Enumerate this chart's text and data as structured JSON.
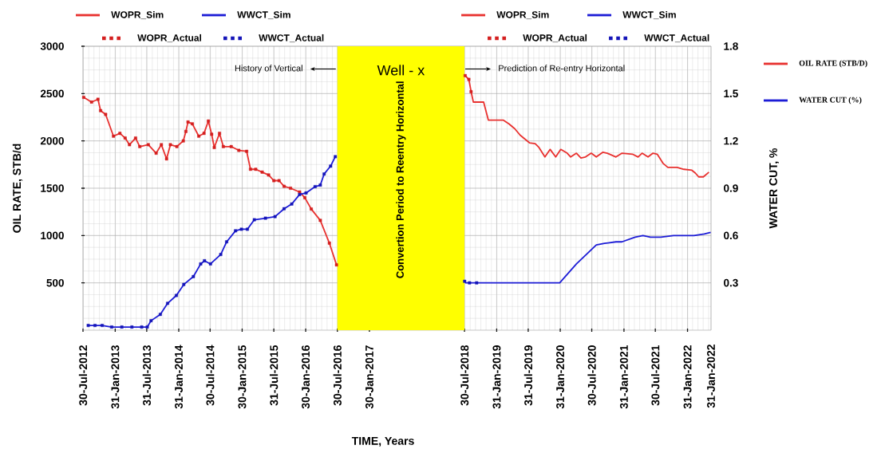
{
  "chart_data": {
    "type": "line",
    "title": "Well - x",
    "xlabel": "TIME, Years",
    "ylabel": "OIL RATE, STB/d",
    "y2label": "WATER CUT, %",
    "xlim": [
      "2012-07-30",
      "2022-06-15"
    ],
    "xticks": [
      {
        "value": "2012-07-30",
        "label": "30-Jul-2012"
      },
      {
        "value": "2013-01-31",
        "label": "31-Jan-2013"
      },
      {
        "value": "2013-07-31",
        "label": "31-Jul-2013"
      },
      {
        "value": "2014-01-31",
        "label": "31-Jan-2014"
      },
      {
        "value": "2014-07-30",
        "label": "30-Jul-2014"
      },
      {
        "value": "2015-01-30",
        "label": "30-Jan-2015"
      },
      {
        "value": "2015-07-31",
        "label": "31-Jul-2015"
      },
      {
        "value": "2016-01-30",
        "label": "30-Jan-2016"
      },
      {
        "value": "2016-07-30",
        "label": "30-Jul-2016"
      },
      {
        "value": "2017-01-30",
        "label": "30-Jan-2017"
      },
      {
        "value": "2018-07-30",
        "label": "30-Jul-2018"
      },
      {
        "value": "2019-01-31",
        "label": "31-Jan-2019"
      },
      {
        "value": "2019-07-31",
        "label": "31-Jul-2019"
      },
      {
        "value": "2020-01-31",
        "label": "31-Jan-2020"
      },
      {
        "value": "2020-07-30",
        "label": "30-Jul-2020"
      },
      {
        "value": "2021-01-31",
        "label": "31-Jan-2021"
      },
      {
        "value": "2021-07-30",
        "label": "30-Jul-2021"
      },
      {
        "value": "2022-01-31",
        "label": "31-Jan-2022"
      }
    ],
    "ylim": [
      0,
      3000
    ],
    "yticks": [
      500,
      1000,
      1500,
      2000,
      2500,
      3000
    ],
    "y2lim": [
      0,
      1.8
    ],
    "y2ticks": [
      0.3,
      0.6,
      0.9,
      1.2,
      1.5,
      1.8
    ],
    "grid": true,
    "legend": "top",
    "bands": [
      {
        "axis": "x",
        "from": "2016-07-30",
        "to": "2018-07-30",
        "label": "Convertion Period to Reentry Horizontal",
        "color": "#ffff00"
      }
    ],
    "annotations": [
      "History of Vertical",
      "Prediction of Re-entry Horizontal",
      "31-Jan-2022"
    ],
    "series": [
      {
        "name": "WOPR_Sim",
        "color": "#e8312f",
        "x": [
          "2012-08-03",
          "2012-09-17",
          "2012-10-24",
          "2012-11-08",
          "2012-12-07",
          "2013-01-21",
          "2013-02-27",
          "2013-03-29",
          "2013-04-23",
          "2013-05-28",
          "2013-06-21",
          "2013-08-09",
          "2013-09-23",
          "2013-10-23",
          "2013-11-22",
          "2013-12-14",
          "2014-01-20",
          "2014-02-26",
          "2014-03-13",
          "2014-03-25",
          "2014-04-19",
          "2014-05-26",
          "2014-06-25",
          "2014-07-20",
          "2014-08-08",
          "2014-08-23",
          "2014-09-22",
          "2014-10-14",
          "2014-11-28",
          "2015-01-11",
          "2015-02-25",
          "2015-03-19",
          "2015-04-18",
          "2015-05-25",
          "2015-07-01",
          "2015-07-31",
          "2015-08-30",
          "2015-09-28",
          "2015-11-04",
          "2015-12-26",
          "2016-01-25",
          "2016-03-02",
          "2016-04-23",
          "2016-06-14",
          "2016-07-25"
        ],
        "values": [
          2460,
          2410,
          2440,
          2320,
          2280,
          2050,
          2080,
          2030,
          1960,
          2030,
          1940,
          1960,
          1870,
          1960,
          1810,
          1960,
          1940,
          2000,
          2100,
          2200,
          2180,
          2050,
          2080,
          2210,
          2070,
          1930,
          2080,
          1940,
          1940,
          1900,
          1890,
          1700,
          1700,
          1670,
          1640,
          1580,
          1580,
          1520,
          1500,
          1460,
          1400,
          1280,
          1160,
          920,
          690
        ]
      },
      {
        "name": "WWCT_Sim",
        "color": "#1c1cd6",
        "axis": "y2",
        "x": [
          "2012-08-29",
          "2012-10-07",
          "2012-11-17",
          "2013-01-11",
          "2013-03-10",
          "2013-05-07",
          "2013-07-02",
          "2013-08-03",
          "2013-08-25",
          "2013-10-17",
          "2013-11-28",
          "2014-01-17",
          "2014-03-01",
          "2014-04-25",
          "2014-06-06",
          "2014-06-28",
          "2014-08-01",
          "2014-09-29",
          "2014-11-02",
          "2014-12-23",
          "2015-01-26",
          "2015-03-01",
          "2015-04-10",
          "2015-06-13",
          "2015-08-07",
          "2015-09-28",
          "2015-11-11",
          "2015-12-26",
          "2016-02-01",
          "2016-03-24",
          "2016-04-23",
          "2016-05-15",
          "2016-06-21",
          "2016-07-18"
        ],
        "values": [
          0.03,
          0.03,
          0.03,
          0.02,
          0.02,
          0.02,
          0.02,
          0.02,
          0.06,
          0.1,
          0.17,
          0.22,
          0.29,
          0.34,
          0.42,
          0.44,
          0.42,
          0.48,
          0.56,
          0.63,
          0.64,
          0.64,
          0.7,
          0.71,
          0.72,
          0.77,
          0.8,
          0.86,
          0.87,
          0.91,
          0.92,
          0.99,
          1.04,
          1.1
        ]
      },
      {
        "name": "WOPR_Actual",
        "type": "scatter",
        "marker": "square",
        "color": "#d41f1f",
        "x": [
          "2012-08-03",
          "2012-09-17",
          "2012-10-24",
          "2012-11-08",
          "2012-12-07",
          "2013-01-21",
          "2013-02-27",
          "2013-03-29",
          "2013-04-23",
          "2013-05-28",
          "2013-06-21",
          "2013-08-09",
          "2013-09-23",
          "2013-10-23",
          "2013-11-22",
          "2013-12-14",
          "2014-01-20",
          "2014-02-26",
          "2014-03-13",
          "2014-03-25",
          "2014-04-19",
          "2014-05-26",
          "2014-06-25",
          "2014-07-20",
          "2014-08-08",
          "2014-08-23",
          "2014-09-22",
          "2014-10-14",
          "2014-11-28",
          "2015-01-11",
          "2015-02-25",
          "2015-03-19",
          "2015-04-18",
          "2015-05-25",
          "2015-07-01",
          "2015-07-31",
          "2015-08-30",
          "2015-09-28",
          "2015-11-04",
          "2015-12-26",
          "2016-01-25",
          "2016-03-02",
          "2016-04-23",
          "2016-06-14",
          "2016-07-25",
          "2018-08-03",
          "2018-08-24",
          "2018-09-06"
        ],
        "values": [
          2460,
          2410,
          2440,
          2320,
          2280,
          2050,
          2080,
          2030,
          1960,
          2030,
          1940,
          1960,
          1870,
          1960,
          1810,
          1960,
          1940,
          2000,
          2100,
          2200,
          2180,
          2050,
          2080,
          2210,
          2070,
          1930,
          2080,
          1940,
          1940,
          1900,
          1890,
          1700,
          1700,
          1670,
          1640,
          1580,
          1580,
          1520,
          1500,
          1460,
          1400,
          1280,
          1160,
          920,
          690,
          2690,
          2650,
          2520
        ]
      },
      {
        "name": "WWCT_Actual",
        "type": "scatter",
        "marker": "square",
        "color": "#1414b8",
        "axis": "y2",
        "x": [
          "2012-08-29",
          "2012-10-07",
          "2012-11-17",
          "2013-01-11",
          "2013-03-10",
          "2013-05-07",
          "2013-07-02",
          "2013-08-03",
          "2013-08-25",
          "2013-10-17",
          "2013-11-28",
          "2014-01-17",
          "2014-03-01",
          "2014-04-25",
          "2014-06-06",
          "2014-06-28",
          "2014-08-01",
          "2014-09-29",
          "2014-11-02",
          "2014-12-23",
          "2015-01-26",
          "2015-03-01",
          "2015-04-10",
          "2015-06-13",
          "2015-08-07",
          "2015-09-28",
          "2015-11-11",
          "2015-12-26",
          "2016-02-01",
          "2016-03-24",
          "2016-04-23",
          "2016-05-15",
          "2016-06-21",
          "2016-07-18",
          "2018-07-31",
          "2018-08-28",
          "2018-10-08"
        ],
        "values": [
          0.03,
          0.03,
          0.03,
          0.02,
          0.02,
          0.02,
          0.02,
          0.02,
          0.06,
          0.1,
          0.17,
          0.22,
          0.29,
          0.34,
          0.42,
          0.44,
          0.42,
          0.48,
          0.56,
          0.63,
          0.64,
          0.64,
          0.7,
          0.71,
          0.72,
          0.77,
          0.8,
          0.86,
          0.87,
          0.91,
          0.92,
          0.99,
          1.04,
          1.1,
          0.31,
          0.3,
          0.3
        ]
      },
      {
        "name": "OIL RATE (STB/D)",
        "color": "#e8312f",
        "x": [
          "2018-08-03",
          "2018-08-24",
          "2018-09-06",
          "2018-09-19",
          "2018-11-17",
          "2018-12-14",
          "2019-03-09",
          "2019-04-11",
          "2019-05-14",
          "2019-06-15",
          "2019-08-07",
          "2019-09-09",
          "2019-10-01",
          "2019-11-04",
          "2019-12-04",
          "2020-01-05",
          "2020-02-03",
          "2020-03-11",
          "2020-03-31",
          "2020-05-03",
          "2020-05-29",
          "2020-06-24",
          "2020-07-27",
          "2020-08-25",
          "2020-10-01",
          "2020-10-27",
          "2020-12-16",
          "2021-01-20",
          "2021-03-21",
          "2021-04-22",
          "2021-05-15",
          "2021-06-18",
          "2021-07-17",
          "2021-08-10",
          "2021-09-14",
          "2021-10-10",
          "2021-12-02",
          "2022-01-10",
          "2022-02-25",
          "2022-03-17",
          "2022-04-05",
          "2022-05-02",
          "2022-06-03"
        ],
        "values": [
          2690,
          2650,
          2520,
          2410,
          2410,
          2220,
          2220,
          2180,
          2130,
          2060,
          1980,
          1970,
          1930,
          1830,
          1910,
          1830,
          1910,
          1870,
          1830,
          1870,
          1820,
          1830,
          1870,
          1830,
          1880,
          1870,
          1830,
          1870,
          1860,
          1830,
          1870,
          1830,
          1870,
          1860,
          1760,
          1720,
          1720,
          1700,
          1690,
          1660,
          1620,
          1620,
          1670
        ]
      },
      {
        "name": "WATER CUT (%)",
        "color": "#1c1cd6",
        "axis": "y2",
        "x": [
          "2018-08-03",
          "2020-01-28",
          "2020-05-03",
          "2020-08-25",
          "2020-10-11",
          "2020-12-16",
          "2021-01-19",
          "2021-04-05",
          "2021-05-20",
          "2021-07-02",
          "2021-08-30",
          "2021-11-12",
          "2022-03-09",
          "2022-05-07",
          "2022-06-13"
        ],
        "values": [
          0.3,
          0.3,
          0.42,
          0.54,
          0.55,
          0.56,
          0.56,
          0.59,
          0.6,
          0.59,
          0.59,
          0.6,
          0.6,
          0.61,
          0.62
        ]
      }
    ]
  }
}
